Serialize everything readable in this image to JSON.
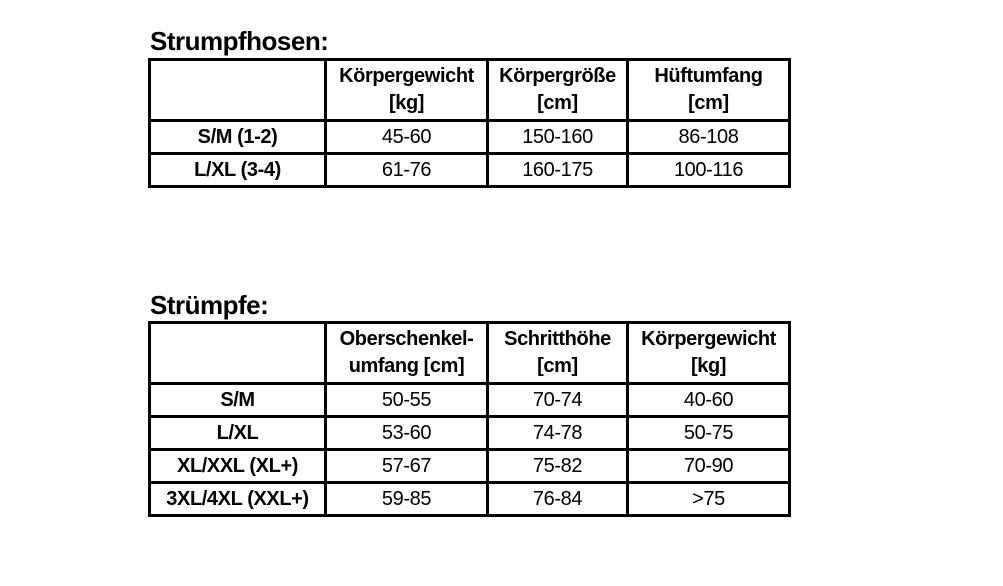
{
  "colors": {
    "background": "#fffefd",
    "text": "#000000",
    "table_border": "#000000"
  },
  "tables": [
    {
      "title": "Strumpfhosen:",
      "columns": [
        {
          "line1": "Körpergewicht",
          "line2": "[kg]"
        },
        {
          "line1": "Körpergröße",
          "line2": "[cm]"
        },
        {
          "line1": "Hüftumfang",
          "line2": "[cm]"
        }
      ],
      "rows": [
        {
          "label": "S/M (1-2)",
          "values": [
            "45-60",
            "150-160",
            "86-108"
          ]
        },
        {
          "label": "L/XL (3-4)",
          "values": [
            "61-76",
            "160-175",
            "100-116"
          ]
        }
      ]
    },
    {
      "title": "Strümpfe:",
      "columns": [
        {
          "line1": "Oberschenkel-",
          "line2": "umfang [cm]"
        },
        {
          "line1": "Schritthöhe",
          "line2": "[cm]"
        },
        {
          "line1": "Körpergewicht",
          "line2": "[kg]"
        }
      ],
      "rows": [
        {
          "label": "S/M",
          "values": [
            "50-55",
            "70-74",
            "40-60"
          ]
        },
        {
          "label": "L/XL",
          "values": [
            "53-60",
            "74-78",
            "50-75"
          ]
        },
        {
          "label": "XL/XXL (XL+)",
          "values": [
            "57-67",
            "75-82",
            "70-90"
          ]
        },
        {
          "label": "3XL/4XL (XXL+)",
          "values": [
            "59-85",
            "76-84",
            ">75"
          ]
        }
      ]
    }
  ]
}
